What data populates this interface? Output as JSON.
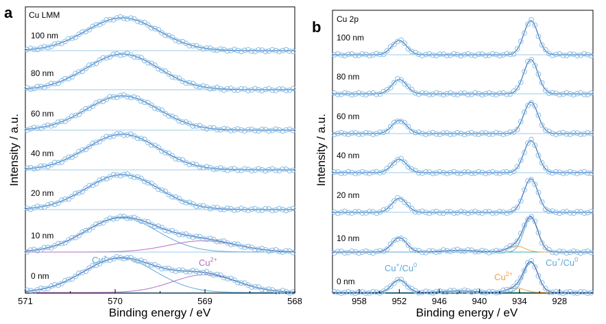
{
  "figure": {
    "panel_a": {
      "letter": "a",
      "tag": "Cu LMM",
      "ylabel": "Intensity / a.u.",
      "xlabel": "Binding energy / eV",
      "xticks": [
        "571",
        "570",
        "569",
        "568"
      ],
      "annotation_cu_plus": "Cu",
      "annotation_cu_plus_sup": "+",
      "annotation_cu_2plus": "Cu",
      "annotation_cu_2plus_sup": "2+"
    },
    "panel_b": {
      "letter": "b",
      "tag": "Cu 2p",
      "ylabel": "Intensity / a.u.",
      "xlabel": "Binding energy / eV",
      "xticks": [
        "958",
        "952",
        "946",
        "940",
        "934",
        "928"
      ],
      "annotation_left": "Cu",
      "annotation_left_sup1": "+",
      "annotation_left_mid": "/Cu",
      "annotation_left_sup2": "0",
      "annotation_mid": "Cu",
      "annotation_mid_sup": "2+",
      "annotation_right": "Cu",
      "annotation_right_sup1": "+",
      "annotation_right_mid": "/Cu",
      "annotation_right_sup2": "0"
    }
  },
  "chart_data": [
    {
      "type": "line",
      "title": "Cu LMM",
      "xlabel": "Binding energy / eV",
      "ylabel": "Intensity / a.u.",
      "xlim": [
        571,
        568
      ],
      "x_reversed": true,
      "yticks_shown": false,
      "traces": [
        {
          "label": "100 nm",
          "components": [
            {
              "center": 569.92,
              "fwhm": 0.95,
              "height": 1.0
            }
          ]
        },
        {
          "label": "80 nm",
          "components": [
            {
              "center": 569.92,
              "fwhm": 0.95,
              "height": 1.0
            }
          ]
        },
        {
          "label": "60 nm",
          "components": [
            {
              "center": 569.92,
              "fwhm": 0.95,
              "height": 1.0
            }
          ]
        },
        {
          "label": "40 nm",
          "components": [
            {
              "center": 569.92,
              "fwhm": 0.95,
              "height": 1.0
            }
          ]
        },
        {
          "label": "20 nm",
          "components": [
            {
              "center": 569.92,
              "fwhm": 0.95,
              "height": 1.0
            }
          ]
        },
        {
          "label": "10 nm",
          "components": [
            {
              "name": "Cu+",
              "center": 569.93,
              "fwhm": 0.95,
              "height": 1.0
            },
            {
              "name": "Cu2+",
              "center": 569.02,
              "fwhm": 0.9,
              "height": 0.33
            }
          ]
        },
        {
          "label": "0 nm",
          "components": [
            {
              "name": "Cu+",
              "center": 569.95,
              "fwhm": 0.95,
              "height": 1.0
            },
            {
              "name": "Cu2+",
              "center": 569.0,
              "fwhm": 0.85,
              "height": 0.52
            }
          ]
        }
      ]
    },
    {
      "type": "line",
      "title": "Cu 2p",
      "xlabel": "Binding energy / eV",
      "ylabel": "Intensity / a.u.",
      "xlim": [
        962,
        923
      ],
      "x_reversed": true,
      "yticks_shown": false,
      "traces": [
        {
          "label": "100 nm",
          "components": [
            {
              "center": 952.0,
              "fwhm": 2.6,
              "height": 0.42
            },
            {
              "center": 932.3,
              "fwhm": 2.5,
              "height": 1.0
            }
          ]
        },
        {
          "label": "80 nm",
          "components": [
            {
              "center": 952.0,
              "fwhm": 2.6,
              "height": 0.42
            },
            {
              "center": 932.3,
              "fwhm": 2.5,
              "height": 1.0
            }
          ]
        },
        {
          "label": "60 nm",
          "components": [
            {
              "center": 952.0,
              "fwhm": 2.6,
              "height": 0.42
            },
            {
              "center": 932.3,
              "fwhm": 2.5,
              "height": 1.0
            }
          ]
        },
        {
          "label": "40 nm",
          "components": [
            {
              "center": 952.0,
              "fwhm": 2.6,
              "height": 0.42
            },
            {
              "center": 932.3,
              "fwhm": 2.5,
              "height": 1.0
            }
          ]
        },
        {
          "label": "20 nm",
          "components": [
            {
              "center": 952.0,
              "fwhm": 2.6,
              "height": 0.42
            },
            {
              "center": 932.3,
              "fwhm": 2.5,
              "height": 1.0
            }
          ]
        },
        {
          "label": "10 nm",
          "components": [
            {
              "name": "Cu+/Cu0",
              "center": 952.0,
              "fwhm": 2.6,
              "height": 0.42
            },
            {
              "name": "Cu2+ satellite",
              "center": 943.0,
              "fwhm": 6.0,
              "height": 0.05
            },
            {
              "name": "Cu2+",
              "center": 934.5,
              "fwhm": 3.0,
              "height": 0.18
            },
            {
              "name": "Cu+/Cu0",
              "center": 932.3,
              "fwhm": 2.5,
              "height": 1.0
            }
          ]
        },
        {
          "label": "0 nm",
          "components": [
            {
              "name": "Cu+/Cu0",
              "center": 952.0,
              "fwhm": 2.6,
              "height": 0.42
            },
            {
              "name": "Cu2+ satellite",
              "center": 943.0,
              "fwhm": 6.0,
              "height": 0.05
            },
            {
              "name": "Cu2+",
              "center": 934.5,
              "fwhm": 3.0,
              "height": 0.15
            },
            {
              "name": "Cu+/Cu0",
              "center": 932.3,
              "fwhm": 2.5,
              "height": 1.0
            }
          ]
        }
      ]
    }
  ]
}
